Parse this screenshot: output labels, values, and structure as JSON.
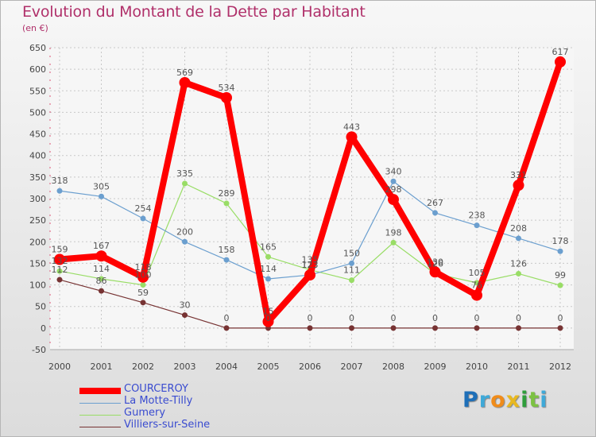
{
  "title": "Evolution du Montant de la Dette par Habitant",
  "unit_label": "(en €)",
  "brand": {
    "letters": [
      "P",
      "r",
      "o",
      "x",
      "i",
      "t",
      "i"
    ]
  },
  "colors": {
    "brand": [
      "#1e6fb8",
      "#3fa9d8",
      "#f08c1a",
      "#e8b820",
      "#2f9e3c",
      "#7cc242",
      "#3fa9d8"
    ],
    "series": [
      "#ff0000",
      "#6b9fcf",
      "#99dd66",
      "#773333"
    ]
  },
  "chart_data": {
    "type": "line",
    "title": "Evolution du Montant de la Dette par Habitant",
    "ylabel": "(en €)",
    "x": [
      "2000",
      "2001",
      "2002",
      "2003",
      "2004",
      "2005",
      "2006",
      "2007",
      "2008",
      "2009",
      "2010",
      "2011",
      "2012"
    ],
    "yticks": [
      -50,
      0,
      50,
      100,
      150,
      200,
      250,
      300,
      350,
      400,
      450,
      500,
      550,
      600,
      650
    ],
    "ylim": [
      -50,
      650
    ],
    "grid": true,
    "series": [
      {
        "name": "COURCEROY",
        "values": [
          159,
          167,
          118,
          569,
          534,
          15,
          123,
          443,
          298,
          130,
          76,
          331,
          617
        ],
        "labels": [
          "159",
          "167",
          "118",
          "569",
          "534",
          "15",
          "123",
          "443",
          "298",
          "130",
          "76",
          "331",
          "617"
        ]
      },
      {
        "name": "La Motte-Tilly",
        "values": [
          318,
          305,
          254,
          200,
          158,
          114,
          123,
          150,
          340,
          267,
          238,
          208,
          178
        ],
        "labels": [
          "318",
          "305",
          "254",
          "200",
          "158",
          "114",
          "123",
          "150",
          "340",
          "267",
          "238",
          "208",
          "178"
        ]
      },
      {
        "name": "Gumery",
        "values": [
          132,
          114,
          100,
          335,
          289,
          165,
          135,
          111,
          198,
          126,
          105,
          126,
          99
        ],
        "labels": [
          "132",
          "114",
          "100",
          "335",
          "289",
          "165",
          "135",
          "111",
          "198",
          "126",
          "105",
          "126",
          "99"
        ]
      },
      {
        "name": "Villiers-sur-Seine",
        "values": [
          112,
          86,
          59,
          30,
          0,
          0,
          0,
          0,
          0,
          0,
          0,
          0,
          0
        ],
        "labels": [
          "112",
          "86",
          "59",
          "30",
          "0",
          "0",
          "0",
          "0",
          "0",
          "0",
          "0",
          "0",
          "0"
        ]
      }
    ]
  }
}
